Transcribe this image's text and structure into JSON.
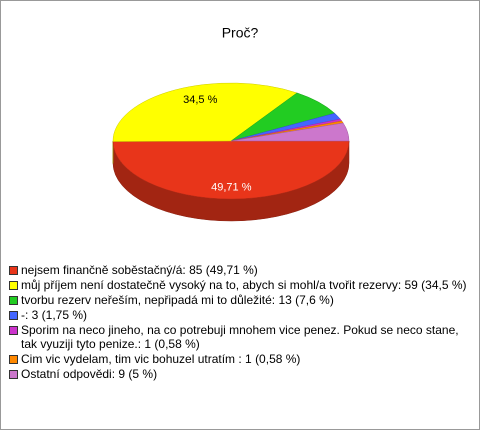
{
  "chart_data": {
    "type": "pie",
    "title": "Proč?",
    "categories": [
      "nejsem finančně soběstačný/á: 85 (49,71 %)",
      "můj příjem není dostatečně vysoký na to, abych si mohl/a tvořit rezervy: 59 (34,5 %)",
      "tvorbu rezerv neřeším, nepřipadá mi to důležité: 13 (7,6 %)",
      "-: 3 (1,75 %)",
      "Sporim na neco jineho, na co potrebuji mnohem vice penez. Pokud se neco stane, tak vyuziji tyto penize.: 1 (0,58 %)",
      "Cim vic vydelam, tim vic bohuzel utratím : 1 (0,58 %)",
      "Ostatní odpovědi: 9 (5 %)"
    ],
    "values": [
      49.71,
      34.5,
      7.6,
      1.75,
      0.58,
      0.58,
      5
    ],
    "value_labels": [
      "49,71 %",
      "34,5 %",
      null,
      null,
      null,
      null,
      null
    ],
    "colors": [
      "#e8351a",
      "#ffff00",
      "#22cc22",
      "#4466ff",
      "#cc33cc",
      "#ff8800",
      "#cc77cc"
    ],
    "legend": "bottom-left"
  }
}
